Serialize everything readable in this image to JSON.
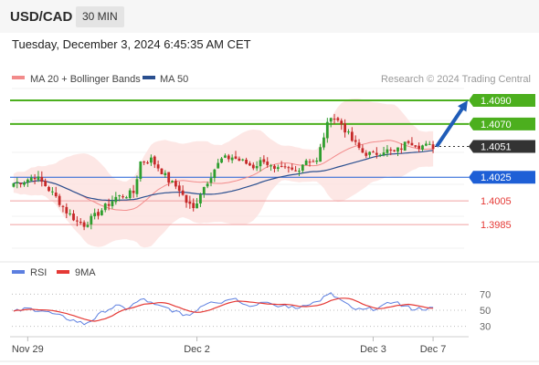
{
  "header": {
    "symbol": "USD/CAD",
    "timeframe": "30 MIN"
  },
  "datetime": "Tuesday, December 3, 2024 6:45:35 AM CET",
  "legend": {
    "ma20": "MA 20 + Bollinger Bands",
    "ma50": "MA 50",
    "copyright": "Research © 2024 Trading Central"
  },
  "rsi_legend": {
    "rsi": "RSI",
    "ma9": "9MA"
  },
  "colors": {
    "bull": "#2e9e2e",
    "bear": "#c62828",
    "support": "#1e5fd6",
    "resistance": "#4caf1e",
    "target_red": "#e53935",
    "ma20": "#f28b8b",
    "ma50": "#2a4f8f",
    "band_fill": "#fde3e1",
    "rsi": "#5c7fe0",
    "rsi_ma": "#e53935",
    "arrow": "#1f5cb8",
    "current": "#333333"
  },
  "chart_data": {
    "type": "candlestick",
    "instrument": "USD/CAD",
    "interval": "30 MIN",
    "ylim": [
      1.3965,
      1.41
    ],
    "x_ticks": [
      "Nov 29",
      "Dec 2",
      "Dec 3",
      "Dec 7"
    ],
    "x_tick_index": [
      4,
      52,
      102,
      119
    ],
    "levels": [
      {
        "value": 1.409,
        "label": "1.4090",
        "kind": "resistance"
      },
      {
        "value": 1.407,
        "label": "1.4070",
        "kind": "resistance"
      },
      {
        "value": 1.4051,
        "label": "1.4051",
        "kind": "current"
      },
      {
        "value": 1.4025,
        "label": "1.4025",
        "kind": "pivot"
      },
      {
        "value": 1.4005,
        "label": "1.4005",
        "kind": "support"
      },
      {
        "value": 1.3985,
        "label": "1.3985",
        "kind": "support"
      }
    ],
    "target_arrow": {
      "from": 1.4051,
      "to": 1.409
    },
    "anchors": [
      [
        0,
        1.402
      ],
      [
        3,
        1.4022
      ],
      [
        6,
        1.4026
      ],
      [
        9,
        1.4018
      ],
      [
        12,
        1.4008
      ],
      [
        15,
        1.3996
      ],
      [
        18,
        1.3988
      ],
      [
        20,
        1.3985
      ],
      [
        23,
        1.3992
      ],
      [
        26,
        1.4
      ],
      [
        29,
        1.4008
      ],
      [
        32,
        1.401
      ],
      [
        34,
        1.4012
      ],
      [
        36,
        1.4038
      ],
      [
        39,
        1.404
      ],
      [
        42,
        1.403
      ],
      [
        44,
        1.4022
      ],
      [
        47,
        1.4015
      ],
      [
        49,
        1.4004
      ],
      [
        51,
        1.3998
      ],
      [
        53,
        1.4012
      ],
      [
        55,
        1.4022
      ],
      [
        57,
        1.4032
      ],
      [
        59,
        1.404
      ],
      [
        62,
        1.4042
      ],
      [
        65,
        1.4038
      ],
      [
        68,
        1.4034
      ],
      [
        71,
        1.404
      ],
      [
        74,
        1.403
      ],
      [
        77,
        1.4032
      ],
      [
        80,
        1.403
      ],
      [
        83,
        1.404
      ],
      [
        86,
        1.4038
      ],
      [
        88,
        1.406
      ],
      [
        90,
        1.4078
      ],
      [
        93,
        1.407
      ],
      [
        96,
        1.4056
      ],
      [
        99,
        1.4046
      ],
      [
        102,
        1.4044
      ],
      [
        105,
        1.4048
      ],
      [
        108,
        1.4046
      ],
      [
        110,
        1.405
      ],
      [
        112,
        1.4056
      ],
      [
        115,
        1.4052
      ],
      [
        118,
        1.4051
      ]
    ],
    "rsi": {
      "ylim": [
        25,
        75
      ],
      "ticks": [
        70,
        50,
        30
      ],
      "anchors": [
        [
          0,
          48
        ],
        [
          4,
          52
        ],
        [
          8,
          50
        ],
        [
          12,
          44
        ],
        [
          15,
          40
        ],
        [
          18,
          36
        ],
        [
          20,
          33
        ],
        [
          23,
          40
        ],
        [
          26,
          50
        ],
        [
          29,
          55
        ],
        [
          32,
          52
        ],
        [
          35,
          60
        ],
        [
          37,
          64
        ],
        [
          40,
          56
        ],
        [
          44,
          52
        ],
        [
          47,
          46
        ],
        [
          50,
          44
        ],
        [
          53,
          55
        ],
        [
          56,
          62
        ],
        [
          59,
          60
        ],
        [
          62,
          66
        ],
        [
          65,
          60
        ],
        [
          68,
          55
        ],
        [
          71,
          62
        ],
        [
          74,
          54
        ],
        [
          77,
          56
        ],
        [
          80,
          52
        ],
        [
          83,
          58
        ],
        [
          86,
          60
        ],
        [
          88,
          66
        ],
        [
          90,
          70
        ],
        [
          93,
          62
        ],
        [
          96,
          52
        ],
        [
          99,
          50
        ],
        [
          102,
          52
        ],
        [
          105,
          55
        ],
        [
          108,
          62
        ],
        [
          110,
          56
        ],
        [
          113,
          52
        ],
        [
          118,
          52
        ]
      ]
    }
  }
}
